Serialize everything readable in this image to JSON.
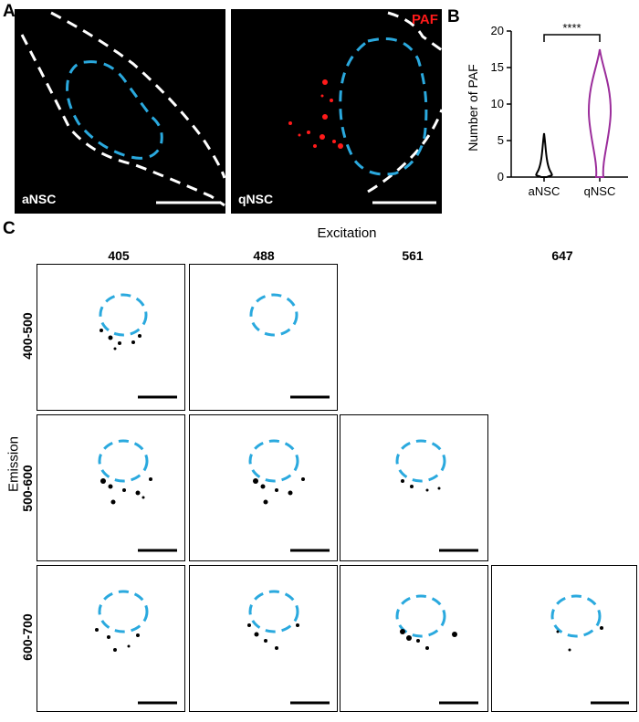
{
  "panels": {
    "a": {
      "letter": "A",
      "paf_label": "PAF",
      "left_label": "aNSC",
      "right_label": "qNSC"
    },
    "b": {
      "letter": "B"
    },
    "c": {
      "letter": "C",
      "excitation_title": "Excitation",
      "emission_title": "Emission",
      "excitation": [
        "405",
        "488",
        "561",
        "647"
      ],
      "emission": [
        "400-500",
        "500-600",
        "600-700"
      ]
    }
  },
  "colors": {
    "dashed_outline": "#2aa9de",
    "signal": "#ff1a1a",
    "anc_violin": "#000000",
    "qnsc_violin": "#9b2d9b"
  },
  "chart_data": {
    "type": "violin",
    "title": "",
    "xlabel": "",
    "ylabel": "Number of PAF",
    "categories": [
      "aNSC",
      "qNSC"
    ],
    "ylim": [
      0,
      20
    ],
    "yticks": [
      "0",
      "5",
      "10",
      "15",
      "20"
    ],
    "significance": "****",
    "series": [
      {
        "name": "aNSC",
        "min": 0,
        "max": 6,
        "median": 1,
        "color": "#000000"
      },
      {
        "name": "qNSC",
        "min": 0,
        "max": 17.5,
        "median": 9,
        "color": "#9b2d9b"
      }
    ]
  }
}
